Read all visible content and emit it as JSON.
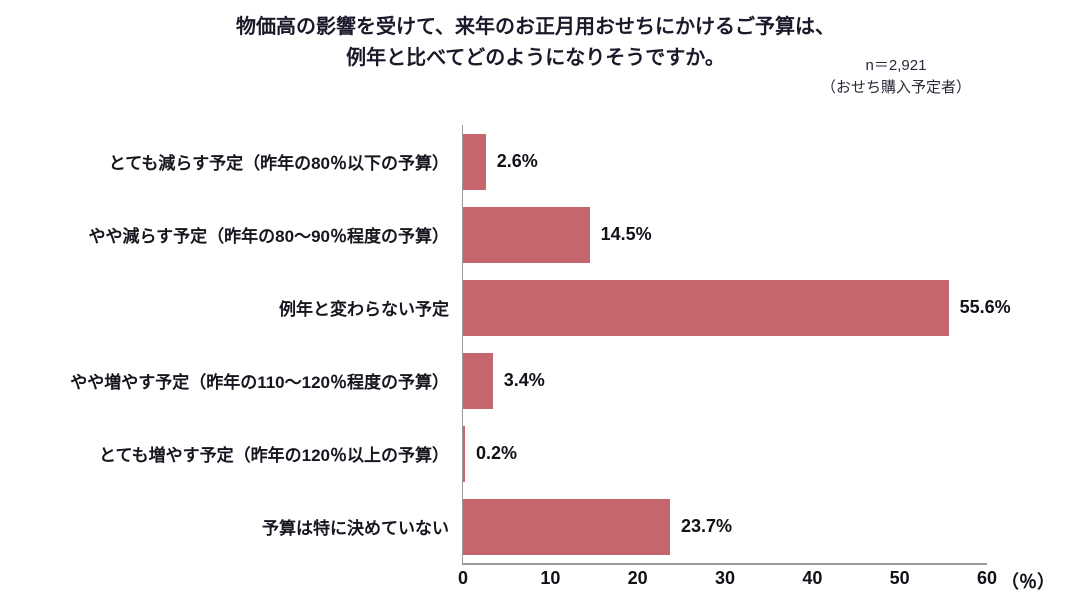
{
  "title": {
    "line1": "物価高の影響を受けて、来年のお正月用おせちにかけるご予算は、",
    "line2": "例年と比べてどのようになりそうですか。"
  },
  "sample_note": {
    "line1": "n＝2,921",
    "line2": "（おせち購入予定者）"
  },
  "colors": {
    "bar": "#c5656d",
    "axis": "#9b9b9b",
    "text": "#16161f"
  },
  "chart_data": {
    "type": "bar",
    "orientation": "horizontal",
    "title": "物価高の影響を受けて、来年のお正月用おせちにかけるご予算は、例年と比べてどのようになりそうですか。",
    "sample_size": "n＝2,921（おせち購入予定者）",
    "categories": [
      "とても減らす予定（昨年の80％以下の予算）",
      "やや減らす予定（昨年の80～90％程度の予算）",
      "例年と変わらない予定",
      "やや増やす予定（昨年の110～120％程度の予算）",
      "とても増やす予定（昨年の120％以上の予算）",
      "予算は特に決めていない"
    ],
    "values": [
      2.6,
      14.5,
      55.6,
      3.4,
      0.2,
      23.7
    ],
    "value_labels": [
      "2.6%",
      "14.5%",
      "55.6%",
      "3.4%",
      "0.2%",
      "23.7%"
    ],
    "xlim": [
      0,
      60
    ],
    "x_ticks": [
      0,
      10,
      20,
      30,
      40,
      50,
      60
    ],
    "x_unit_label": "（％）",
    "bar_color": "#c5656d",
    "grid": false,
    "legend": false
  }
}
